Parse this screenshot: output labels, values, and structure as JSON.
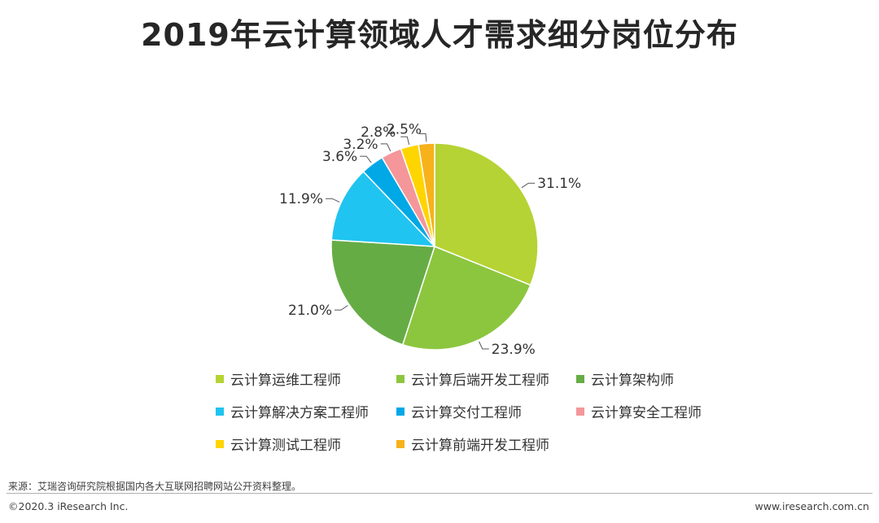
{
  "page": {
    "title": "2019年云计算领域人才需求细分岗位分布",
    "source": "来源：艾瑞咨询研究院根据国内各大互联网招聘网站公开资料整理。",
    "copyright": "©2020.3 iResearch Inc.",
    "website": "www.iresearch.com.cn"
  },
  "chart_data": {
    "type": "pie",
    "title": "2019年云计算领域人才需求细分岗位分布",
    "categories": [
      "云计算运维工程师",
      "云计算后端开发工程师",
      "云计算架构师",
      "云计算解决方案工程师",
      "云计算交付工程师",
      "云计算安全工程师",
      "云计算测试工程师",
      "云计算前端开发工程师"
    ],
    "values": [
      31.1,
      23.9,
      21.0,
      11.9,
      3.6,
      3.2,
      2.8,
      2.5
    ],
    "labels": [
      "31.1%",
      "23.9%",
      "21.0%",
      "11.9%",
      "3.6%",
      "3.2%",
      "2.8%",
      "2.5%"
    ],
    "colors": [
      "#b5d334",
      "#8cc63f",
      "#66ac45",
      "#1fc4f0",
      "#00a8e6",
      "#f4969a",
      "#ffd500",
      "#f7b21b"
    ],
    "legend_position": "bottom"
  }
}
